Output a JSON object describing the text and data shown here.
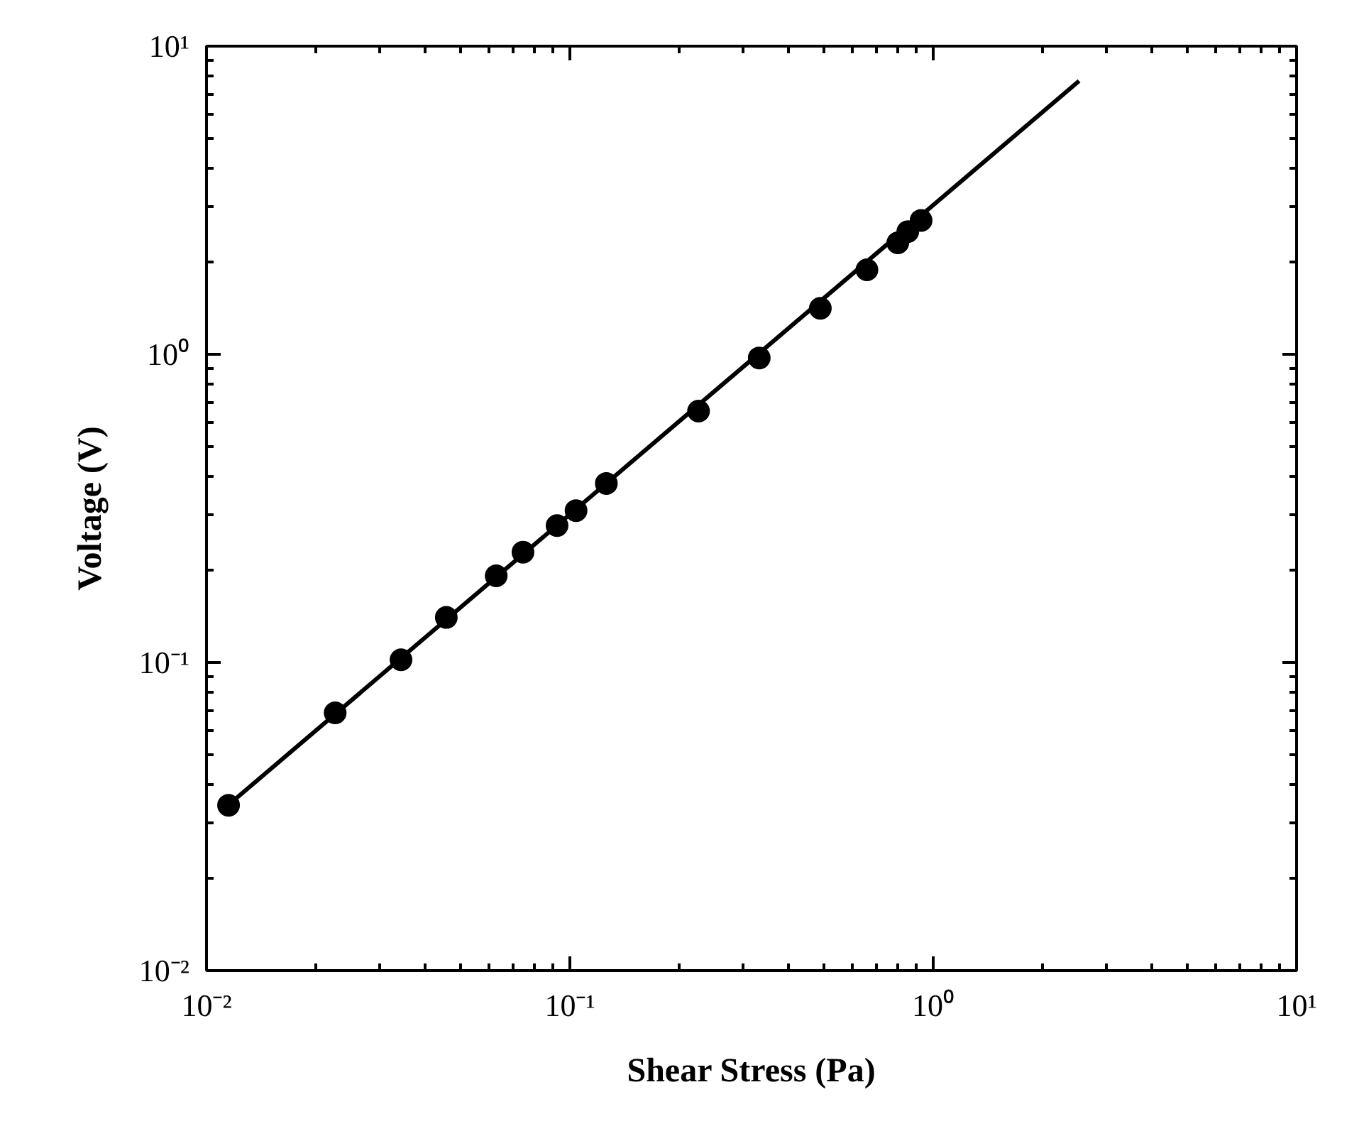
{
  "chart_data": {
    "type": "scatter",
    "xlabel": "Shear Stress (Pa)",
    "ylabel": "Voltage (V)",
    "log": "xy",
    "grid": false,
    "marker": "circle",
    "xlim": [
      0.01,
      10
    ],
    "ylim": [
      0.01,
      10
    ],
    "xticks": [
      {
        "value": 0.01,
        "label": "10⁻²"
      },
      {
        "value": 0.1,
        "label": "10⁻¹"
      },
      {
        "value": 1,
        "label": "10⁰"
      },
      {
        "value": 10,
        "label": "10¹"
      }
    ],
    "yticks": [
      {
        "value": 0.01,
        "label": "10⁻²"
      },
      {
        "value": 0.1,
        "label": "10⁻¹"
      },
      {
        "value": 1,
        "label": "10⁰"
      },
      {
        "value": 10,
        "label": "10¹"
      }
    ],
    "series": [
      {
        "color": "#000000",
        "x": [
          0.0115,
          0.0226,
          0.0343,
          0.0457,
          0.0627,
          0.0743,
          0.0922,
          0.104,
          0.126,
          0.226,
          0.332,
          0.489,
          0.657,
          0.799,
          0.851,
          0.926
        ],
        "values": [
          0.0344,
          0.0686,
          0.102,
          0.14,
          0.191,
          0.228,
          0.278,
          0.311,
          0.381,
          0.654,
          0.973,
          1.41,
          1.88,
          2.3,
          2.5,
          2.72
        ]
      },
      {
        "type": "line",
        "color": "#000000",
        "marker": "none",
        "x": [
          0.0115,
          2.52
        ],
        "values": [
          0.0345,
          7.71
        ]
      }
    ]
  }
}
